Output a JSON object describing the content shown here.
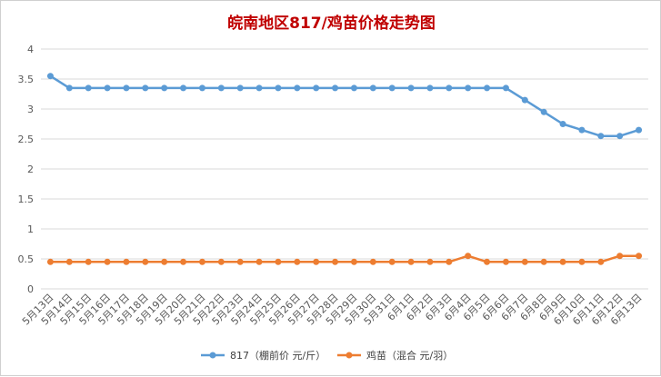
{
  "chart_data": {
    "type": "line",
    "title": "皖南地区817/鸡苗价格走势图",
    "xlabel": "",
    "ylabel": "",
    "ylim": [
      0,
      4
    ],
    "yticks": [
      0,
      0.5,
      1,
      1.5,
      2,
      2.5,
      3,
      3.5,
      4
    ],
    "ytick_labels": [
      "0",
      "0.5",
      "1",
      "1.5",
      "2",
      "2.5",
      "3",
      "3.5",
      "4"
    ],
    "grid": true,
    "legend_position": "bottom",
    "categories": [
      "5月13日",
      "5月14日",
      "5月15日",
      "5月16日",
      "5月17日",
      "5月18日",
      "5月19日",
      "5月20日",
      "5月21日",
      "5月22日",
      "5月23日",
      "5月24日",
      "5月25日",
      "5月26日",
      "5月27日",
      "5月28日",
      "5月29日",
      "5月30日",
      "5月31日",
      "6月1日",
      "6月2日",
      "6月3日",
      "6月4日",
      "6月5日",
      "6月6日",
      "6月7日",
      "6月8日",
      "6月9日",
      "6月10日",
      "6月11日",
      "6月12日",
      "6月13日"
    ],
    "series": [
      {
        "name": "817（棚前价 元/斤）",
        "color": "#5b9bd5",
        "values": [
          3.55,
          3.35,
          3.35,
          3.35,
          3.35,
          3.35,
          3.35,
          3.35,
          3.35,
          3.35,
          3.35,
          3.35,
          3.35,
          3.35,
          3.35,
          3.35,
          3.35,
          3.35,
          3.35,
          3.35,
          3.35,
          3.35,
          3.35,
          3.35,
          3.35,
          3.15,
          2.95,
          2.75,
          2.65,
          2.55,
          2.55,
          2.65
        ]
      },
      {
        "name": "鸡苗（混合 元/羽）",
        "color": "#ed7d31",
        "values": [
          0.45,
          0.45,
          0.45,
          0.45,
          0.45,
          0.45,
          0.45,
          0.45,
          0.45,
          0.45,
          0.45,
          0.45,
          0.45,
          0.45,
          0.45,
          0.45,
          0.45,
          0.45,
          0.45,
          0.45,
          0.45,
          0.45,
          0.55,
          0.45,
          0.45,
          0.45,
          0.45,
          0.45,
          0.45,
          0.45,
          0.55,
          0.55
        ]
      }
    ]
  }
}
